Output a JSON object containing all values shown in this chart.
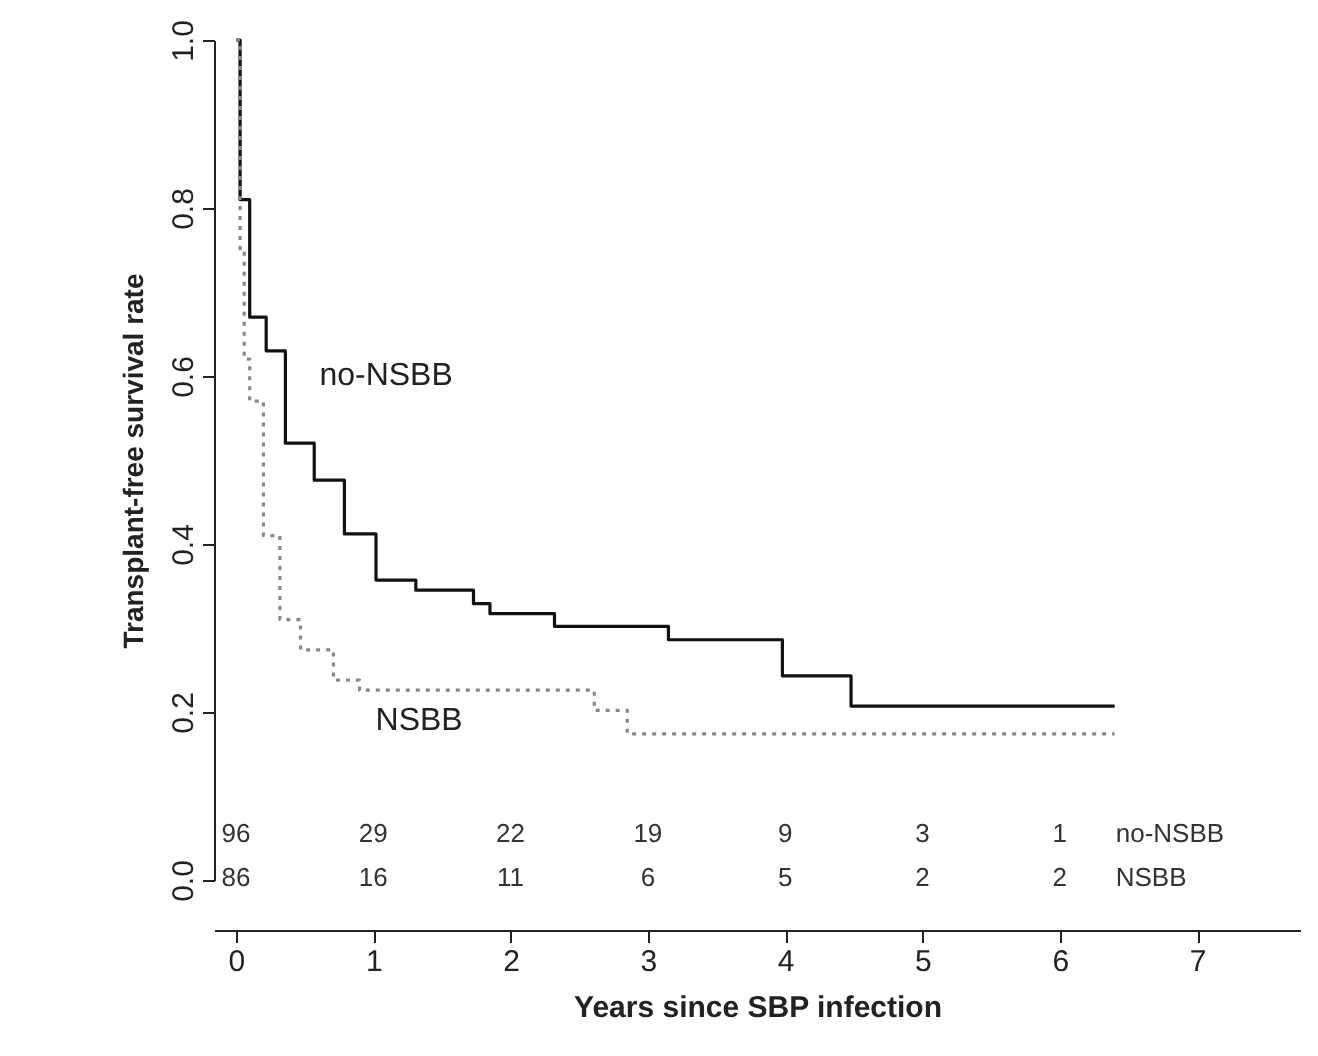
{
  "chart_data": {
    "type": "step",
    "xlabel": "Years since SBP infection",
    "ylabel": "Transplant-free survival rate",
    "xlim": [
      -0.16,
      7.75
    ],
    "xticks": [
      0,
      1,
      2,
      3,
      4,
      5,
      6,
      7
    ],
    "ylim": [
      0,
      1
    ],
    "yticks": [
      {
        "value": 0,
        "label": "0.0"
      },
      0.2,
      0.4,
      0.6,
      0.8,
      {
        "value": 1,
        "label": "1.0"
      }
    ],
    "grid": false,
    "series": [
      {
        "name": "no-NSBB",
        "color": "#111111",
        "line_style": "solid",
        "x": [
          0,
          0.03,
          0.1,
          0.22,
          0.36,
          0.57,
          0.79,
          1.02,
          1.31,
          1.73,
          1.85,
          2.32,
          3.15,
          3.98,
          4.48,
          6.4
        ],
        "values": [
          1.0,
          0.81,
          0.67,
          0.63,
          0.52,
          0.476,
          0.412,
          0.357,
          0.345,
          0.329,
          0.317,
          0.302,
          0.286,
          0.243,
          0.207,
          0.207
        ]
      },
      {
        "name": "NSBB",
        "color": "#888888",
        "line_style": "dotted",
        "x": [
          0,
          0.03,
          0.06,
          0.1,
          0.2,
          0.32,
          0.47,
          0.71,
          0.9,
          2.61,
          2.85,
          6.4
        ],
        "values": [
          1.0,
          0.75,
          0.62,
          0.57,
          0.41,
          0.31,
          0.274,
          0.238,
          0.226,
          0.202,
          0.174,
          0.174
        ]
      }
    ],
    "annotations": [
      "96",
      "29",
      "22",
      "19",
      "9",
      "3",
      "1",
      "no-NSBB",
      "86",
      "16",
      "11",
      "6",
      "5",
      "2",
      "2",
      "NSBB"
    ]
  }
}
